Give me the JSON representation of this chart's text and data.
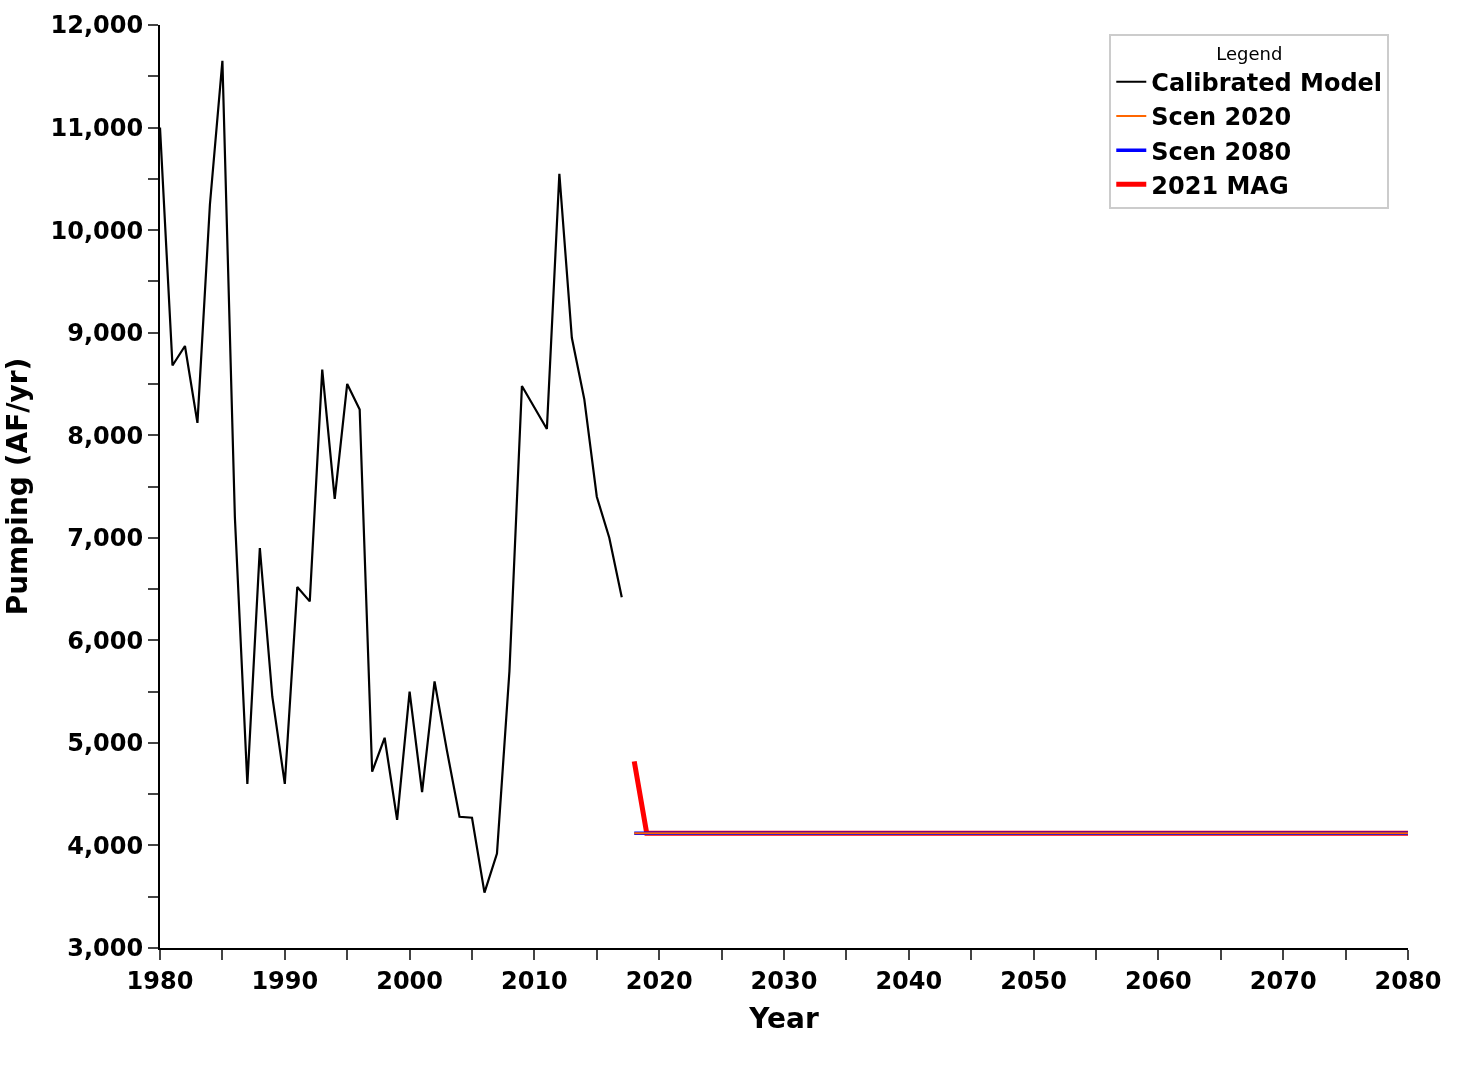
{
  "chart_data": {
    "type": "line",
    "xlabel": "Year",
    "ylabel": "Pumping (AF/yr)",
    "legend_title": "Legend",
    "legend": "top right",
    "marker": "none",
    "line_style": "solid",
    "xlim": [
      1980,
      2080
    ],
    "ylim": [
      3000,
      12000
    ],
    "xticks": [
      1980,
      {
        "value": 1985,
        "label": null
      },
      1990,
      {
        "value": 1995,
        "label": null
      },
      2000,
      {
        "value": 2005,
        "label": null
      },
      2010,
      {
        "value": 2015,
        "label": null
      },
      2020,
      {
        "value": 2025,
        "label": null
      },
      2030,
      {
        "value": 2035,
        "label": null
      },
      2040,
      {
        "value": 2045,
        "label": null
      },
      2050,
      {
        "value": 2055,
        "label": null
      },
      2060,
      {
        "value": 2065,
        "label": null
      },
      2070,
      {
        "value": 2075,
        "label": null
      },
      2080
    ],
    "yticks": [
      {
        "value": 3000,
        "label": "3,000"
      },
      {
        "value": 3500,
        "label": null
      },
      {
        "value": 4000,
        "label": "4,000"
      },
      {
        "value": 4500,
        "label": null
      },
      {
        "value": 5000,
        "label": "5,000"
      },
      {
        "value": 5500,
        "label": null
      },
      {
        "value": 6000,
        "label": "6,000"
      },
      {
        "value": 6500,
        "label": null
      },
      {
        "value": 7000,
        "label": "7,000"
      },
      {
        "value": 7500,
        "label": null
      },
      {
        "value": 8000,
        "label": "8,000"
      },
      {
        "value": 8500,
        "label": null
      },
      {
        "value": 9000,
        "label": "9,000"
      },
      {
        "value": 9500,
        "label": null
      },
      {
        "value": 10000,
        "label": "10,000"
      },
      {
        "value": 10500,
        "label": null
      },
      {
        "value": 11000,
        "label": "11,000"
      },
      {
        "value": 11500,
        "label": null
      },
      {
        "value": 12000,
        "label": "12,000"
      }
    ],
    "series": [
      {
        "name": "Calibrated Model",
        "color": "#000000",
        "x": [
          1980,
          1981,
          1982,
          1983,
          1984,
          1985,
          1986,
          1987,
          1988,
          1989,
          1990,
          1991,
          1992,
          1993,
          1994,
          1995,
          1996,
          1997,
          1998,
          1999,
          2000,
          2001,
          2002,
          2003,
          2004,
          2005,
          2006,
          2007,
          2008,
          2009,
          2010,
          2011,
          2012,
          2013,
          2014,
          2015,
          2016,
          2017
        ],
        "values": [
          11000,
          8680,
          8870,
          8120,
          10250,
          11650,
          7200,
          4600,
          6900,
          5450,
          4600,
          6520,
          6380,
          8640,
          7380,
          8500,
          8250,
          4720,
          5050,
          4250,
          5500,
          4520,
          5600,
          4920,
          4280,
          4270,
          3540,
          3920,
          5700,
          8480,
          8270,
          8060,
          10550,
          8950,
          8350,
          7400,
          7000,
          6420
        ]
      },
      {
        "name": "Scen 2020",
        "color": "#ff6600",
        "x": [
          2018,
          2080
        ],
        "values": [
          4120,
          4120
        ]
      },
      {
        "name": "Scen 2080",
        "color": "#0000ff",
        "x": [
          2018,
          2080
        ],
        "values": [
          4120,
          4120
        ]
      },
      {
        "name": "2021 MAG",
        "color": "#ff0000",
        "x": [
          2018,
          2019,
          2080
        ],
        "values": [
          4820,
          4120,
          4120
        ]
      }
    ]
  }
}
